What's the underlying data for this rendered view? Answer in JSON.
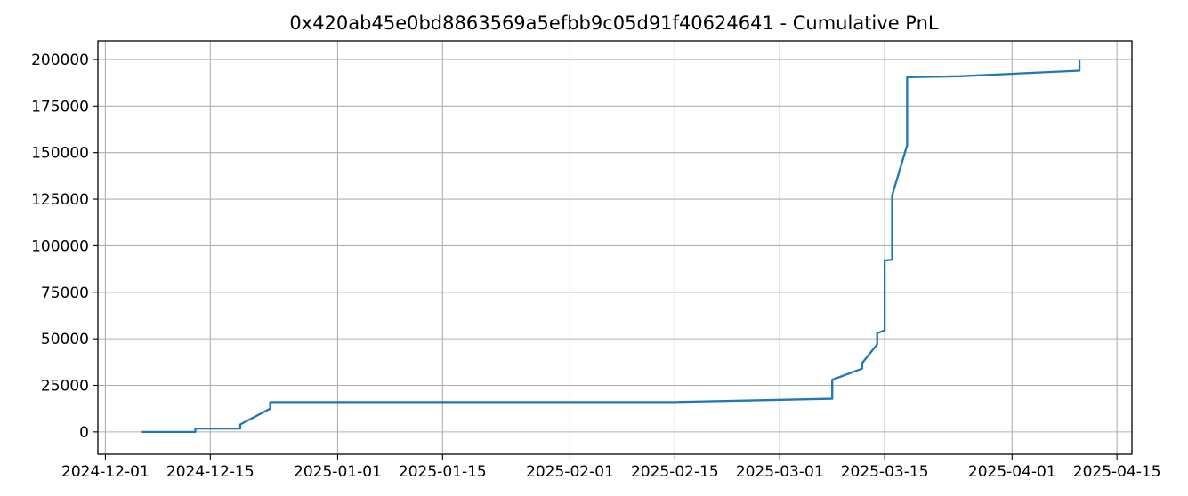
{
  "chart_data": {
    "type": "line",
    "title": "0x420ab45e0bd8863569a5efbb9c05d91f40624641 - Cumulative PnL",
    "xlabel": "",
    "ylabel": "",
    "x_axis_kind": "date",
    "xlim": [
      "2024-11-30",
      "2025-04-17"
    ],
    "ylim": [
      -12000,
      210000
    ],
    "grid": true,
    "line_color": "#1f77b4",
    "x_ticks": [
      {
        "date": "2024-12-01",
        "label": "2024-12-01"
      },
      {
        "date": "2024-12-15",
        "label": "2024-12-15"
      },
      {
        "date": "2025-01-01",
        "label": "2025-01-01"
      },
      {
        "date": "2025-01-15",
        "label": "2025-01-15"
      },
      {
        "date": "2025-02-01",
        "label": "2025-02-01"
      },
      {
        "date": "2025-02-15",
        "label": "2025-02-15"
      },
      {
        "date": "2025-03-01",
        "label": "2025-03-01"
      },
      {
        "date": "2025-03-15",
        "label": "2025-03-15"
      },
      {
        "date": "2025-04-01",
        "label": "2025-04-01"
      },
      {
        "date": "2025-04-15",
        "label": "2025-04-15"
      }
    ],
    "y_ticks": [
      {
        "value": 0,
        "label": "0"
      },
      {
        "value": 25000,
        "label": "25000"
      },
      {
        "value": 50000,
        "label": "50000"
      },
      {
        "value": 75000,
        "label": "75000"
      },
      {
        "value": 100000,
        "label": "100000"
      },
      {
        "value": 125000,
        "label": "125000"
      },
      {
        "value": 150000,
        "label": "150000"
      },
      {
        "value": 175000,
        "label": "175000"
      },
      {
        "value": 200000,
        "label": "200000"
      }
    ],
    "series": [
      {
        "points": [
          {
            "x": "2024-12-06",
            "y": 0
          },
          {
            "x": "2024-12-13",
            "y": 0
          },
          {
            "x": "2024-12-13",
            "y": 1800
          },
          {
            "x": "2024-12-19",
            "y": 1800
          },
          {
            "x": "2024-12-19",
            "y": 4000
          },
          {
            "x": "2024-12-23",
            "y": 12500
          },
          {
            "x": "2024-12-23",
            "y": 16000
          },
          {
            "x": "2025-02-15",
            "y": 16000
          },
          {
            "x": "2025-03-08",
            "y": 17800
          },
          {
            "x": "2025-03-08",
            "y": 28000
          },
          {
            "x": "2025-03-12",
            "y": 34000
          },
          {
            "x": "2025-03-12",
            "y": 37000
          },
          {
            "x": "2025-03-14",
            "y": 47000
          },
          {
            "x": "2025-03-14",
            "y": 53000
          },
          {
            "x": "2025-03-15",
            "y": 54500
          },
          {
            "x": "2025-03-15",
            "y": 92000
          },
          {
            "x": "2025-03-16",
            "y": 92500
          },
          {
            "x": "2025-03-16",
            "y": 127000
          },
          {
            "x": "2025-03-18",
            "y": 154000
          },
          {
            "x": "2025-03-18",
            "y": 190500
          },
          {
            "x": "2025-03-25",
            "y": 191000
          },
          {
            "x": "2025-04-10",
            "y": 194000
          },
          {
            "x": "2025-04-10",
            "y": 199500
          }
        ]
      }
    ]
  }
}
